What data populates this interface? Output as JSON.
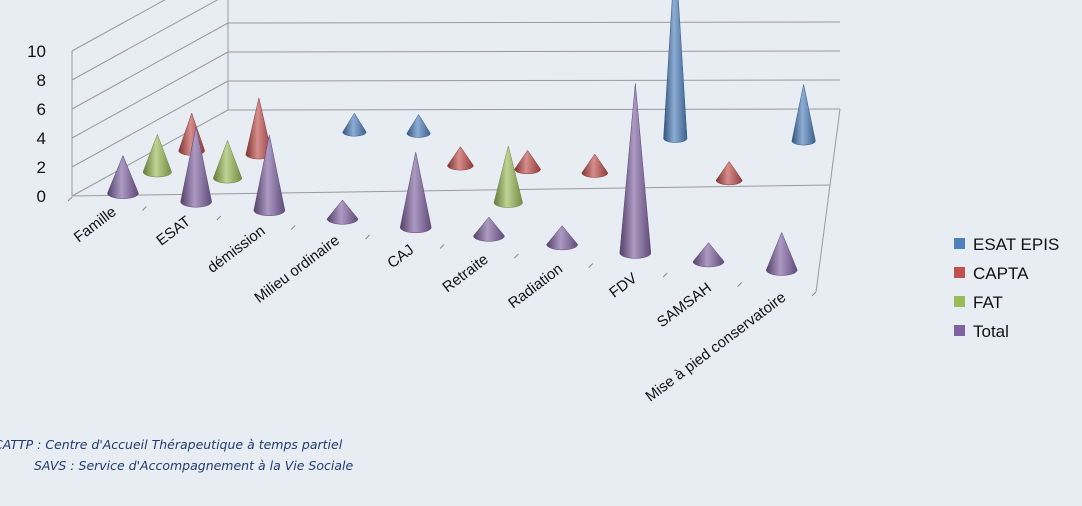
{
  "chart_data": {
    "type": "bar",
    "style": "3d-cone",
    "title": "",
    "xlabel": "",
    "ylabel": "",
    "ylim": [
      0,
      10
    ],
    "yticks": [
      "0",
      "2",
      "4",
      "6",
      "8",
      "10"
    ],
    "grid": true,
    "legend_position": "right",
    "categories": [
      "Famille",
      "ESAT",
      "démission",
      "Milieu ordinaire",
      "CAJ",
      "Retraite",
      "Radiation",
      "FDV",
      "SAMSAH",
      "Mise à pied conservatoire"
    ],
    "series": [
      {
        "name": "ESAT EPIS",
        "color": "#4f81bd",
        "values": [
          0,
          0,
          1,
          1,
          0,
          0,
          0,
          10,
          0,
          3
        ]
      },
      {
        "name": "CAPTA",
        "color": "#c0504d",
        "values": [
          2,
          3,
          0,
          0,
          1,
          1,
          1,
          0,
          1,
          0
        ]
      },
      {
        "name": "FAT",
        "color": "#9bbb59",
        "values": [
          2,
          2,
          0,
          0,
          0,
          3,
          0,
          0,
          0,
          0
        ]
      },
      {
        "name": "Total",
        "color": "#8064a2",
        "values": [
          2,
          4,
          4,
          1,
          4,
          1,
          1,
          9,
          1,
          2
        ]
      }
    ]
  },
  "footnotes": {
    "cattp": "CATTP : Centre d'Accueil Thérapeutique à temps partiel",
    "savs": "SAVS : Service d'Accompagnement à la Vie Sociale"
  }
}
